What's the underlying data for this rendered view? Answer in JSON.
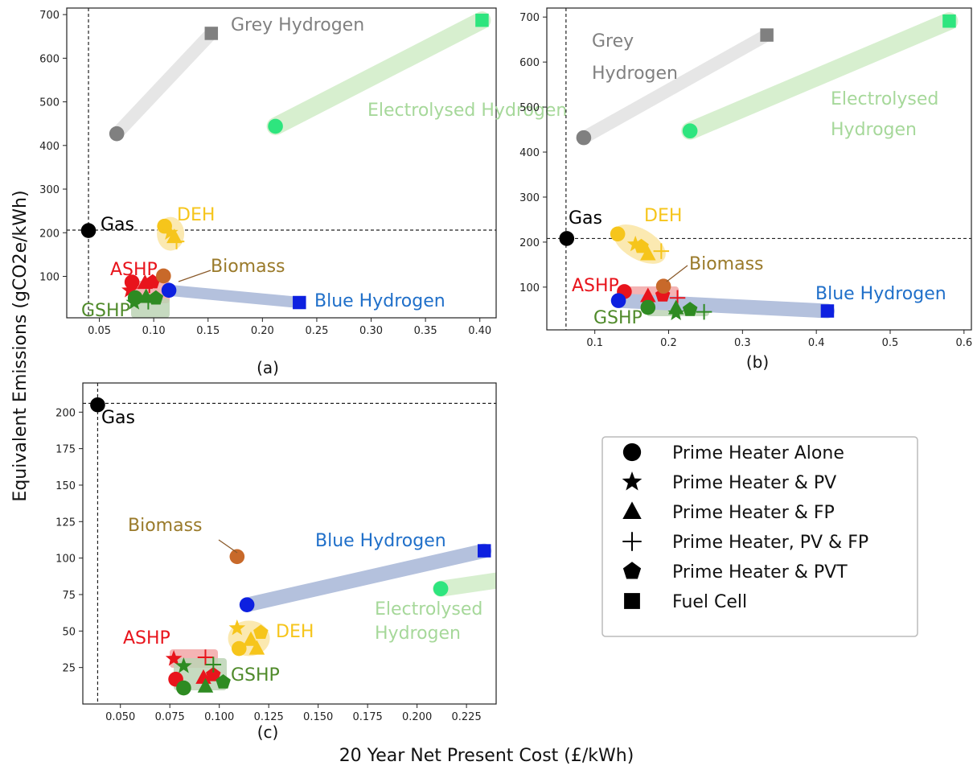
{
  "figure": {
    "xlabel": "20 Year Net Present Cost (£/kWh)",
    "ylabel": "Equivalent Emissions (gCO2e/kWh)",
    "legend": [
      {
        "marker": "circle",
        "label": "Prime Heater Alone"
      },
      {
        "marker": "star",
        "label": "Prime Heater & PV"
      },
      {
        "marker": "triangle",
        "label": "Prime Heater & FP"
      },
      {
        "marker": "plus",
        "label": "Prime Heater, PV & FP"
      },
      {
        "marker": "pentagon",
        "label": "Prime Heater & PVT"
      },
      {
        "marker": "square",
        "label": "Fuel Cell"
      }
    ]
  },
  "colors": {
    "gas": "#000000",
    "grey_h2": "#808080",
    "grey_fill": "#e6e6e6",
    "electro": "#2ee57e",
    "electro_label": "#a6d89a",
    "electro_fill": "#d7efcf",
    "deh": "#f6c51b",
    "deh_label": "#f6c51b",
    "deh_fill": "#fbe9b1",
    "ashp": "#e8141c",
    "ashp_fill": "#f2a7a7",
    "gshp": "#2e8b22",
    "gshp_label": "#4f8a2a",
    "gshp_fill": "#bcd3b5",
    "biomass": "#c8692a",
    "biomass_label": "#9a7a2a",
    "blue_h2": "#0d20e0",
    "blue_label": "#1f6fc9",
    "blue_fill": "#b4c1dd"
  },
  "chart_data": [
    {
      "id": "a",
      "caption": "(a)",
      "type": "scatter",
      "xlim": [
        0.02,
        0.415
      ],
      "ylim": [
        5,
        715
      ],
      "xticks": [
        0.05,
        0.1,
        0.15,
        0.2,
        0.25,
        0.3,
        0.35,
        0.4
      ],
      "xtick_labels": [
        "0.05",
        "0.10",
        "0.15",
        "0.20",
        "0.25",
        "0.30",
        "0.35",
        "0.40"
      ],
      "yticks": [
        100,
        200,
        300,
        400,
        500,
        600,
        700
      ],
      "ytick_labels": [
        "100",
        "200",
        "300",
        "400",
        "500",
        "600",
        "700"
      ],
      "ref_lines": {
        "x": 0.04,
        "y": 206
      },
      "groups": [
        {
          "name": "Gas",
          "color": "gas",
          "points": [
            {
              "x": 0.04,
              "y": 205,
              "m": "circle"
            }
          ]
        },
        {
          "name": "Grey Hydrogen",
          "color": "grey_h2",
          "fill": "grey_fill",
          "points": [
            {
              "x": 0.066,
              "y": 427,
              "m": "circle"
            },
            {
              "x": 0.153,
              "y": 657,
              "m": "square"
            }
          ]
        },
        {
          "name": "Electrolysed Hydrogen",
          "color": "electro",
          "fill": "electro_fill",
          "points": [
            {
              "x": 0.212,
              "y": 444,
              "m": "circle"
            },
            {
              "x": 0.402,
              "y": 687,
              "m": "square"
            }
          ]
        },
        {
          "name": "DEH",
          "color": "deh",
          "fill": "deh_fill",
          "points": [
            {
              "x": 0.11,
              "y": 215,
              "m": "circle"
            },
            {
              "x": 0.115,
              "y": 200,
              "m": "star"
            },
            {
              "x": 0.119,
              "y": 190,
              "m": "triangle"
            },
            {
              "x": 0.121,
              "y": 180,
              "m": "plus"
            }
          ]
        },
        {
          "name": "ASHP",
          "color": "ashp",
          "fill": "ashp_fill",
          "points": [
            {
              "x": 0.08,
              "y": 87,
              "m": "circle"
            },
            {
              "x": 0.078,
              "y": 68,
              "m": "star"
            },
            {
              "x": 0.092,
              "y": 85,
              "m": "triangle"
            },
            {
              "x": 0.096,
              "y": 80,
              "m": "plus"
            },
            {
              "x": 0.099,
              "y": 87,
              "m": "pentagon"
            }
          ]
        },
        {
          "name": "GSHP",
          "color": "gshp",
          "fill": "gshp_fill",
          "points": [
            {
              "x": 0.083,
              "y": 51,
              "m": "circle"
            },
            {
              "x": 0.082,
              "y": 40,
              "m": "star"
            },
            {
              "x": 0.093,
              "y": 53,
              "m": "triangle"
            },
            {
              "x": 0.095,
              "y": 42,
              "m": "plus"
            },
            {
              "x": 0.102,
              "y": 50,
              "m": "pentagon"
            }
          ]
        },
        {
          "name": "Biomass",
          "color": "biomass",
          "points": [
            {
              "x": 0.109,
              "y": 101,
              "m": "circle"
            }
          ]
        },
        {
          "name": "Blue Hydrogen",
          "color": "blue_h2",
          "fill": "blue_fill",
          "points": [
            {
              "x": 0.114,
              "y": 68,
              "m": "circle"
            },
            {
              "x": 0.234,
              "y": 40,
              "m": "square"
            }
          ]
        }
      ]
    },
    {
      "id": "b",
      "caption": "(b)",
      "type": "scatter",
      "xlim": [
        0.035,
        0.61
      ],
      "ylim": [
        5,
        720
      ],
      "xticks": [
        0.1,
        0.2,
        0.3,
        0.4,
        0.5,
        0.6
      ],
      "xtick_labels": [
        "0.1",
        "0.2",
        "0.3",
        "0.4",
        "0.5",
        "0.6"
      ],
      "yticks": [
        100,
        200,
        300,
        400,
        500,
        600,
        700
      ],
      "ytick_labels": [
        "100",
        "200",
        "300",
        "400",
        "500",
        "600",
        "700"
      ],
      "ref_lines": {
        "x": 0.061,
        "y": 208
      },
      "groups": [
        {
          "name": "Gas",
          "color": "gas",
          "points": [
            {
              "x": 0.062,
              "y": 208,
              "m": "circle"
            }
          ]
        },
        {
          "name": "Grey Hydrogen",
          "label_lines": [
            "Grey",
            "Hydrogen"
          ],
          "color": "grey_h2",
          "fill": "grey_fill",
          "points": [
            {
              "x": 0.085,
              "y": 432,
              "m": "circle"
            },
            {
              "x": 0.333,
              "y": 660,
              "m": "square"
            }
          ]
        },
        {
          "name": "Electrolysed Hydrogen",
          "label_lines": [
            "Electrolysed",
            "Hydrogen"
          ],
          "color": "electro",
          "fill": "electro_fill",
          "points": [
            {
              "x": 0.229,
              "y": 447,
              "m": "circle"
            },
            {
              "x": 0.58,
              "y": 691,
              "m": "square"
            }
          ]
        },
        {
          "name": "DEH",
          "color": "deh",
          "fill": "deh_fill",
          "points": [
            {
              "x": 0.131,
              "y": 218,
              "m": "circle"
            },
            {
              "x": 0.155,
              "y": 195,
              "m": "star"
            },
            {
              "x": 0.163,
              "y": 190,
              "m": "pentagon"
            },
            {
              "x": 0.172,
              "y": 173,
              "m": "triangle"
            },
            {
              "x": 0.19,
              "y": 180,
              "m": "plus"
            }
          ]
        },
        {
          "name": "ASHP",
          "color": "ashp",
          "fill": "ashp_fill",
          "points": [
            {
              "x": 0.14,
              "y": 90,
              "m": "circle"
            },
            {
              "x": 0.172,
              "y": 80,
              "m": "triangle"
            },
            {
              "x": 0.192,
              "y": 82,
              "m": "pentagon"
            },
            {
              "x": 0.212,
              "y": 76,
              "m": "plus"
            }
          ]
        },
        {
          "name": "GSHP",
          "color": "gshp",
          "fill": "gshp_fill",
          "points": [
            {
              "x": 0.172,
              "y": 55,
              "m": "circle"
            },
            {
              "x": 0.21,
              "y": 53,
              "m": "triangle"
            },
            {
              "x": 0.21,
              "y": 42,
              "m": "star"
            },
            {
              "x": 0.229,
              "y": 50,
              "m": "pentagon"
            },
            {
              "x": 0.248,
              "y": 45,
              "m": "plus"
            }
          ]
        },
        {
          "name": "Biomass",
          "color": "biomass",
          "points": [
            {
              "x": 0.193,
              "y": 102,
              "m": "circle"
            }
          ]
        },
        {
          "name": "Blue Hydrogen",
          "color": "blue_h2",
          "fill": "blue_fill",
          "points": [
            {
              "x": 0.132,
              "y": 70,
              "m": "circle"
            },
            {
              "x": 0.415,
              "y": 47,
              "m": "square"
            }
          ]
        }
      ]
    },
    {
      "id": "c",
      "caption": "(c)",
      "type": "scatter",
      "xlim": [
        0.031,
        0.24
      ],
      "ylim": [
        0,
        220
      ],
      "xticks": [
        0.05,
        0.075,
        0.1,
        0.125,
        0.15,
        0.175,
        0.2,
        0.225
      ],
      "xtick_labels": [
        "0.050",
        "0.075",
        "0.100",
        "0.125",
        "0.150",
        "0.175",
        "0.200",
        "0.225"
      ],
      "yticks": [
        25,
        50,
        75,
        100,
        125,
        150,
        175,
        200
      ],
      "ytick_labels": [
        "25",
        "50",
        "75",
        "100",
        "125",
        "150",
        "175",
        "200"
      ],
      "ref_lines": {
        "x": 0.0385,
        "y": 206
      },
      "groups": [
        {
          "name": "Gas",
          "color": "gas",
          "points": [
            {
              "x": 0.0385,
              "y": 205,
              "m": "circle"
            }
          ]
        },
        {
          "name": "Biomass",
          "color": "biomass",
          "points": [
            {
              "x": 0.109,
              "y": 101,
              "m": "circle"
            }
          ]
        },
        {
          "name": "Blue Hydrogen",
          "color": "blue_h2",
          "fill": "blue_fill",
          "points": [
            {
              "x": 0.114,
              "y": 68,
              "m": "circle"
            },
            {
              "x": 0.234,
              "y": 105,
              "m": "square"
            }
          ]
        },
        {
          "name": "Electrolysed Hydrogen",
          "label_lines": [
            "Electrolysed",
            "Hydrogen"
          ],
          "color": "electro",
          "fill": "electro_fill",
          "points": [
            {
              "x": 0.212,
              "y": 79,
              "m": "circle"
            }
          ]
        },
        {
          "name": "DEH",
          "color": "deh",
          "fill": "deh_fill",
          "points": [
            {
              "x": 0.109,
              "y": 52,
              "m": "star"
            },
            {
              "x": 0.121,
              "y": 49,
              "m": "pentagon"
            },
            {
              "x": 0.116,
              "y": 44,
              "m": "triangle"
            },
            {
              "x": 0.11,
              "y": 38,
              "m": "circle"
            },
            {
              "x": 0.119,
              "y": 38,
              "m": "triangle"
            }
          ]
        },
        {
          "name": "ASHP",
          "color": "ashp",
          "fill": "ashp_fill",
          "points": [
            {
              "x": 0.077,
              "y": 31,
              "m": "star"
            },
            {
              "x": 0.093,
              "y": 32,
              "m": "plus"
            },
            {
              "x": 0.078,
              "y": 17,
              "m": "circle"
            },
            {
              "x": 0.092,
              "y": 18,
              "m": "triangle"
            },
            {
              "x": 0.097,
              "y": 20,
              "m": "pentagon"
            }
          ]
        },
        {
          "name": "GSHP",
          "color": "gshp",
          "fill": "gshp_fill",
          "points": [
            {
              "x": 0.082,
              "y": 26,
              "m": "star"
            },
            {
              "x": 0.097,
              "y": 27,
              "m": "plus"
            },
            {
              "x": 0.082,
              "y": 11,
              "m": "circle"
            },
            {
              "x": 0.093,
              "y": 12,
              "m": "triangle"
            },
            {
              "x": 0.102,
              "y": 15,
              "m": "pentagon"
            }
          ]
        }
      ]
    }
  ]
}
